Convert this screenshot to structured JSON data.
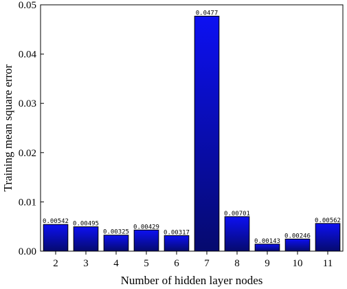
{
  "chart_data": {
    "type": "bar",
    "title": "",
    "xlabel": "Number of hidden layer nodes",
    "ylabel": "Training mean square error",
    "categories": [
      "2",
      "3",
      "4",
      "5",
      "6",
      "7",
      "8",
      "9",
      "10",
      "11"
    ],
    "values": [
      0.00542,
      0.00495,
      0.00325,
      0.00429,
      0.00317,
      0.0477,
      0.00701,
      0.00143,
      0.00246,
      0.00562
    ],
    "data_labels": [
      "0.00542",
      "0.00495",
      "0.00325",
      "0.00429",
      "0.00317",
      "0.0477",
      "0.00701",
      "0.00143",
      "0.00246",
      "0.00562"
    ],
    "ylim": [
      0,
      0.05
    ],
    "yticks": [
      0.0,
      0.01,
      0.02,
      0.03,
      0.04,
      0.05
    ],
    "ytick_labels": [
      "0.00",
      "0.01",
      "0.02",
      "0.03",
      "0.04",
      "0.05"
    ],
    "grid": false,
    "legend": "none",
    "colors": {
      "bar_top": "#0d10f2",
      "bar_bottom": "#050a6e",
      "bar_stroke": "#000000",
      "axis": "#000000"
    }
  }
}
